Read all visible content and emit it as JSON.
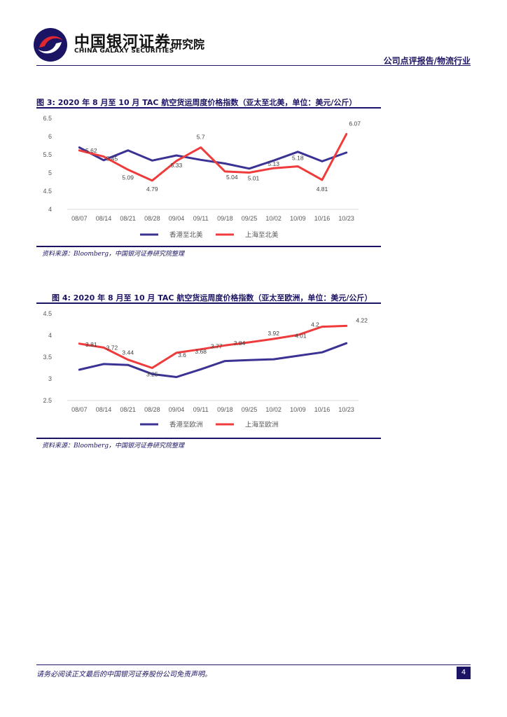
{
  "header": {
    "logo_cn": "中国银河证券",
    "logo_en": "CHINA GALAXY SECURITIES",
    "institute": "研究院",
    "category": "公司点评报告/物流行业"
  },
  "colors": {
    "navy": "#1b1464",
    "series_hk": "#3a3394",
    "series_sh": "#ef3b3b"
  },
  "figures": [
    {
      "title": "图 3: 2020 年 8 月至 10 月 TAC 航空货运周度价格指数（亚太至北美，单位：美元/公斤）",
      "source": "资料来源：Bloomberg，中国银河证券研究院整理"
    },
    {
      "title": "图 4: 2020 年 8 月至 10 月 TAC 航空货运周度价格指数（亚太至欧洲，单位：美元/公斤）",
      "source": "资料来源：Bloomberg，中国银河证券研究院整理"
    }
  ],
  "chart_data": [
    {
      "type": "line",
      "title": "图 3: 2020 年 8 月至 10 月 TAC 航空货运周度价格指数（亚太至北美，单位：美元/公斤）",
      "categories": [
        "08/07",
        "08/14",
        "08/21",
        "08/28",
        "09/04",
        "09/11",
        "09/18",
        "09/25",
        "10/02",
        "10/09",
        "10/16",
        "10/23"
      ],
      "yticks": [
        "4",
        "4.5",
        "5",
        "5.5",
        "6",
        "6.5"
      ],
      "ylim": [
        4,
        6.5
      ],
      "series": [
        {
          "name": "香港至北美",
          "color": "#3a3394",
          "values": [
            5.7,
            5.35,
            5.62,
            5.34,
            5.48,
            5.36,
            5.26,
            5.12,
            5.34,
            5.58,
            5.32,
            5.56
          ]
        },
        {
          "name": "上海至北美",
          "color": "#ef3b3b",
          "values": [
            5.62,
            5.45,
            5.09,
            4.79,
            5.33,
            5.7,
            5.04,
            5.01,
            5.13,
            5.18,
            4.81,
            6.07
          ]
        }
      ],
      "data_labels": [
        "5.62",
        "5.45",
        "5.09",
        "4.79",
        "5.33",
        "5.7",
        "5.04",
        "5.01",
        "5.13",
        "5.18",
        "4.81",
        "6.07"
      ],
      "legend": "bottom"
    },
    {
      "type": "line",
      "title": "图 4: 2020 年 8 月至 10 月 TAC 航空货运周度价格指数（亚太至欧洲，单位：美元/公斤）",
      "categories": [
        "08/07",
        "08/14",
        "08/21",
        "08/28",
        "09/04",
        "09/11",
        "09/18",
        "09/25",
        "10/02",
        "10/09",
        "10/16",
        "10/23"
      ],
      "yticks": [
        "2.5",
        "3",
        "3.5",
        "4",
        "4.5"
      ],
      "ylim": [
        2.5,
        4.5
      ],
      "series": [
        {
          "name": "香港至欧洲",
          "color": "#3a3394",
          "values": [
            3.21,
            3.34,
            3.32,
            3.11,
            3.04,
            3.22,
            3.41,
            3.43,
            3.45,
            3.53,
            3.61,
            3.82
          ]
        },
        {
          "name": "上海至欧洲",
          "color": "#ef3b3b",
          "values": [
            3.81,
            3.72,
            3.44,
            3.25,
            3.6,
            3.68,
            3.77,
            3.84,
            3.92,
            4.01,
            4.2,
            4.22
          ]
        }
      ],
      "data_labels": [
        "3.81",
        "3.72",
        "3.44",
        "3.25",
        "3.6",
        "3.68",
        "3.77",
        "3.84",
        "3.92",
        "4.01",
        "4.2",
        "4.22"
      ],
      "legend": "bottom"
    }
  ],
  "footer": {
    "disclaimer": "请务必阅读正文最后的中国银河证券股份公司免责声明。",
    "page_number": "4"
  }
}
